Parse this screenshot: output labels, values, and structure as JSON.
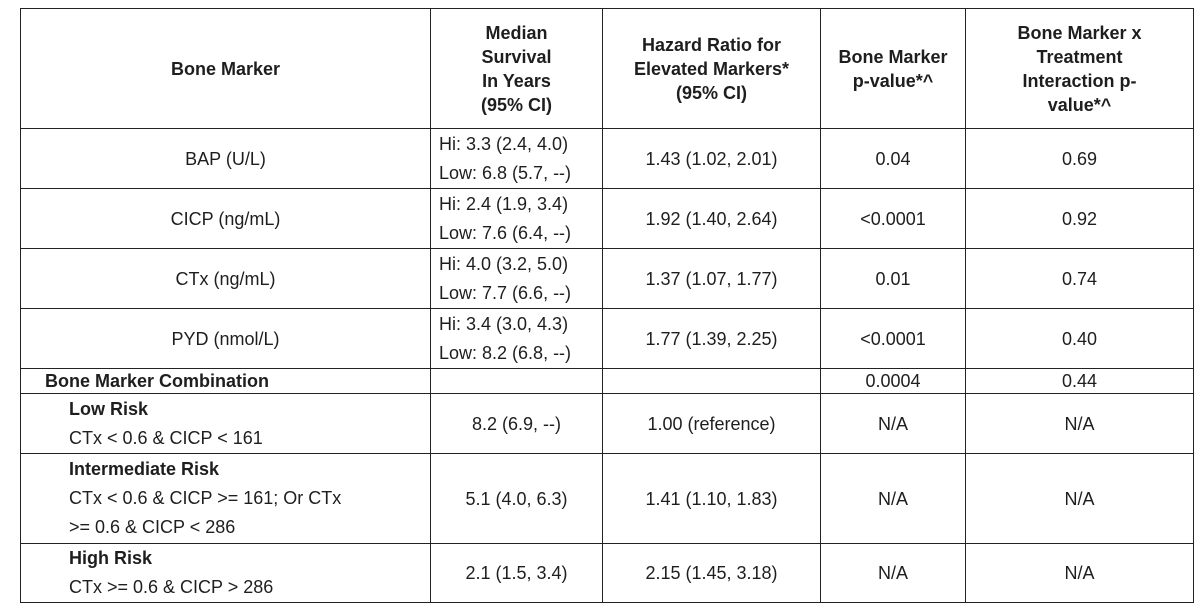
{
  "table": {
    "header": [
      [
        "Bone Marker"
      ],
      [
        "Median",
        "Survival",
        "In Years",
        "(95% CI)"
      ],
      [
        "Hazard Ratio for",
        "Elevated Markers*",
        "(95% CI)"
      ],
      [
        "Bone Marker",
        "p-value*^"
      ],
      [
        "Bone Marker x",
        "Treatment",
        "Interaction p-",
        "value*^"
      ]
    ],
    "marker_rows": [
      {
        "marker": "BAP (U/L)",
        "median": [
          "Hi: 3.3 (2.4, 4.0)",
          "Low: 6.8 (5.7, --)"
        ],
        "hazard_ratio": "1.43 (1.02, 2.01)",
        "p_value": "0.04",
        "interaction_p": "0.69"
      },
      {
        "marker": "CICP (ng/mL)",
        "median": [
          "Hi: 2.4 (1.9, 3.4)",
          "Low: 7.6 (6.4, --)"
        ],
        "hazard_ratio": "1.92 (1.40, 2.64)",
        "p_value": "<0.0001",
        "interaction_p": "0.92"
      },
      {
        "marker": "CTx (ng/mL)",
        "median": [
          "Hi: 4.0 (3.2, 5.0)",
          "Low: 7.7 (6.6, --)"
        ],
        "hazard_ratio": "1.37 (1.07, 1.77)",
        "p_value": "0.01",
        "interaction_p": "0.74"
      },
      {
        "marker": "PYD (nmol/L)",
        "median": [
          "Hi: 3.4 (3.0, 4.3)",
          "Low: 8.2 (6.8, --)"
        ],
        "hazard_ratio": "1.77 (1.39, 2.25)",
        "p_value": "<0.0001",
        "interaction_p": "0.40"
      }
    ],
    "combination": {
      "label": "Bone Marker Combination",
      "p_value": "0.0004",
      "interaction_p": "0.44"
    },
    "risk_rows": [
      {
        "group": "Low Risk",
        "criteria": [
          "CTx < 0.6 & CICP < 161"
        ],
        "median": "8.2 (6.9, --)",
        "hazard_ratio": "1.00 (reference)",
        "p_value": "N/A",
        "interaction_p": "N/A"
      },
      {
        "group": "Intermediate Risk",
        "criteria": [
          "CTx < 0.6 & CICP >= 161; Or CTx",
          ">= 0.6 & CICP < 286"
        ],
        "median": "5.1 (4.0, 6.3)",
        "hazard_ratio": "1.41 (1.10, 1.83)",
        "p_value": "N/A",
        "interaction_p": "N/A"
      },
      {
        "group": "High Risk",
        "criteria": [
          "CTx >= 0.6 & CICP > 286"
        ],
        "median": "2.1 (1.5, 3.4)",
        "hazard_ratio": "2.15 (1.45, 3.18)",
        "p_value": "N/A",
        "interaction_p": "N/A"
      }
    ]
  }
}
